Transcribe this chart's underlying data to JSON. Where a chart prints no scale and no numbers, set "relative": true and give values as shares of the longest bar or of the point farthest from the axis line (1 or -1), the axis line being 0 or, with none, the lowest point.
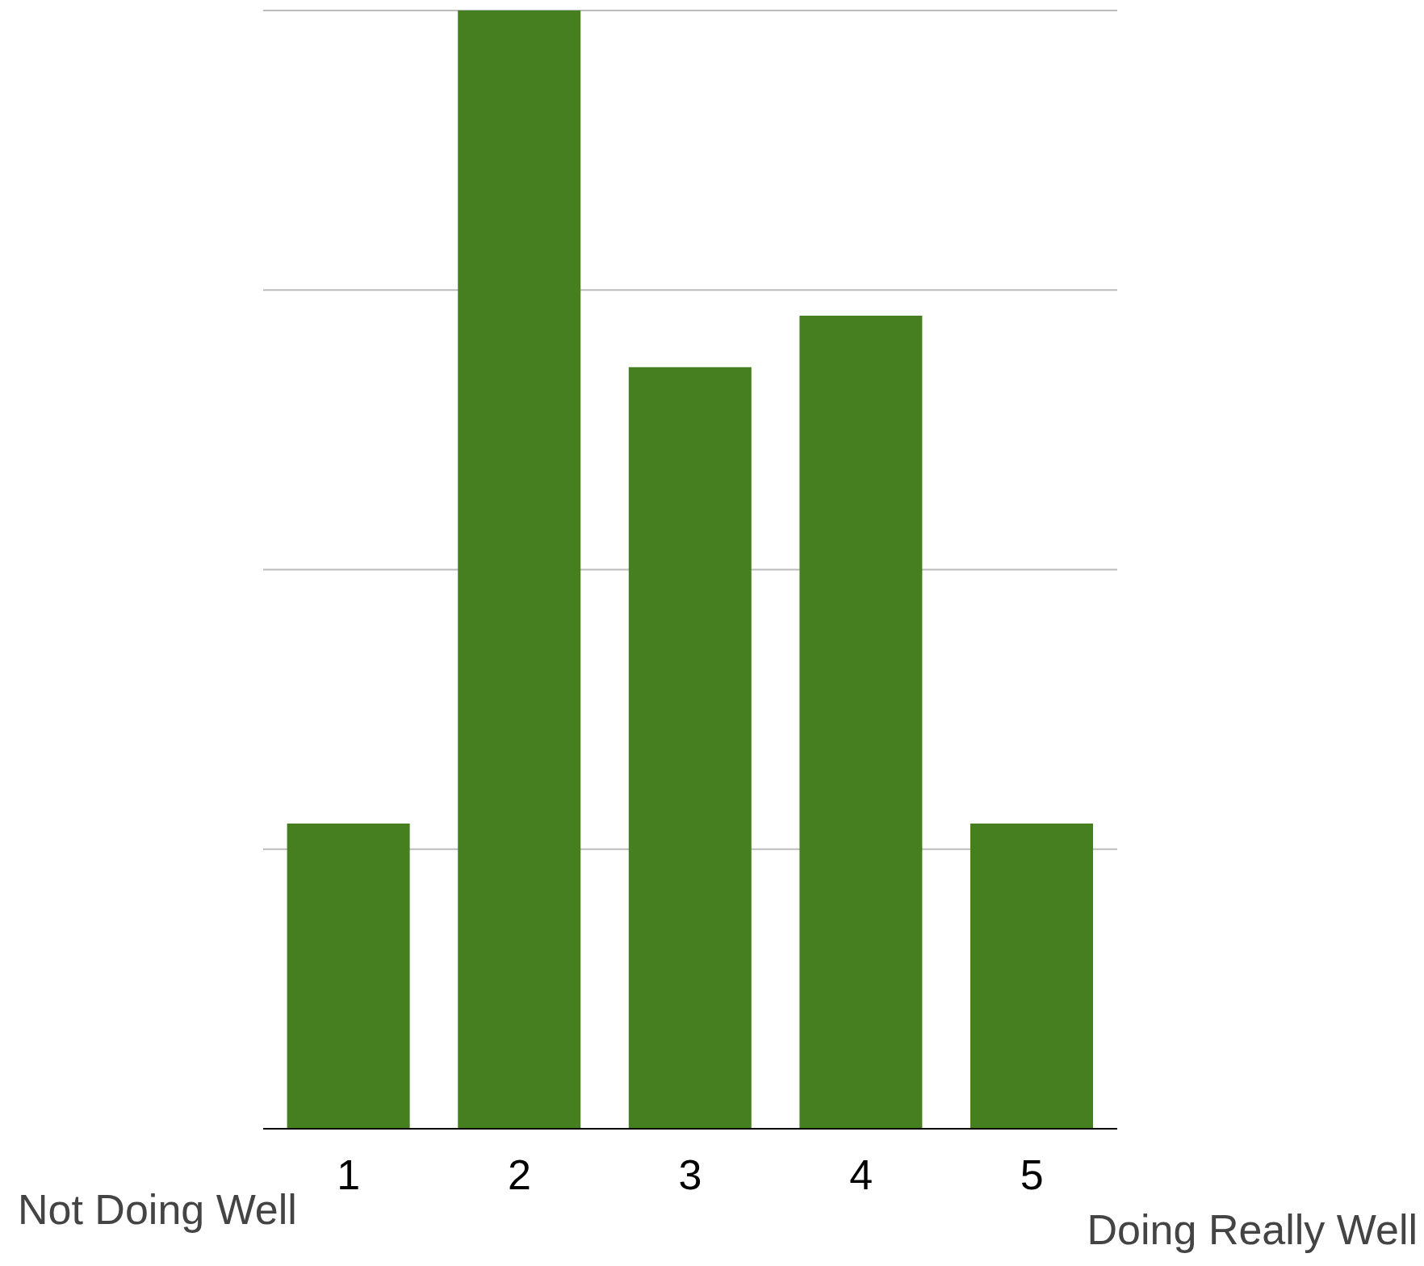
{
  "chart_data": {
    "type": "bar",
    "relative": true,
    "categories": [
      "1",
      "2",
      "3",
      "4",
      "5"
    ],
    "values": [
      0.273,
      1,
      0.681,
      0.727,
      0.273
    ],
    "color": "#467f1f",
    "grid": "y",
    "annotations": [
      "Not Doing Well",
      "Doing Really Well"
    ]
  }
}
